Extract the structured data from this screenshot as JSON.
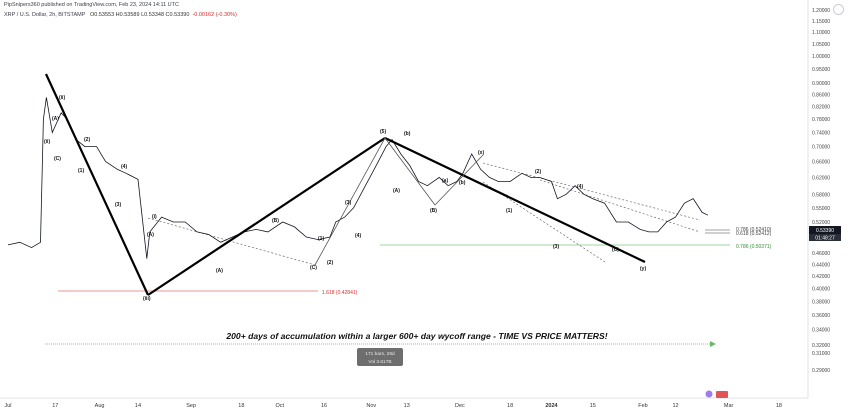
{
  "header": {
    "published": "PipSnipers360 published on TradingView.com, Feb 23, 2024 14:11 UTC",
    "symbol": "XRP / U.S. Dollar, 2h, BITSTAMP",
    "ohlc": "O0.53553 H0.53589 L0.53348 C0.53390",
    "change": "-0.00162 (-0.30%)"
  },
  "annotation": {
    "caption": "200+ days of accumulation within a larger 600+ day wycoff range - TIME VS PRICE MATTERS!",
    "tooltip_line1": "171 bars, 28d",
    "tooltip_line2": "Vol 3.617B"
  },
  "fib_levels": [
    {
      "label": "1.618 (0.42841)",
      "color": "#e57373"
    },
    {
      "label": "0.786 (0.50371)",
      "color": "#81c784"
    },
    {
      "label": "0.786 (0.52410)",
      "color": "#444444"
    },
    {
      "label": "0.618 (0.52412)",
      "color": "#444444"
    }
  ],
  "price_tags": {
    "last": "0.53390",
    "countdown": "01:48:27"
  },
  "wave_labels": [
    "(i)",
    "(ii)",
    "(iii)",
    "(A)",
    "(B)",
    "(C)",
    "(1)",
    "(2)",
    "(3)",
    "(4)",
    "(5)",
    "(a)",
    "(b)",
    "(c)",
    "(d)",
    "(e)",
    "(x)",
    "(y)"
  ],
  "chart_data": {
    "type": "line",
    "x_tick_labels": [
      "Jul",
      "17",
      "Aug",
      "14",
      "Sep",
      "18",
      "Oct",
      "16",
      "Nov",
      "13",
      "Dec",
      "18",
      "2024",
      "15",
      "Feb",
      "12",
      "Mar",
      "18"
    ],
    "y_tick_labels": [
      "1.20000",
      "1.15000",
      "1.10000",
      "1.05000",
      "1.00000",
      "0.95000",
      "0.90000",
      "0.86000",
      "0.82000",
      "0.78000",
      "0.74000",
      "0.70000",
      "0.66000",
      "0.62000",
      "0.58000",
      "0.55000",
      "0.52000",
      "0.49000",
      "0.46000",
      "0.44000",
      "0.42000",
      "0.40000",
      "0.38000",
      "0.36000",
      "0.34000",
      "0.32000",
      "0.31000",
      "0.29000"
    ],
    "ylim": [
      0.29,
      1.2
    ],
    "scale": "log",
    "grid": false,
    "series": [
      {
        "color": "#131722",
        "points": [
          [
            "2023-07-01",
            0.475
          ],
          [
            "2023-07-05",
            0.48
          ],
          [
            "2023-07-09",
            0.47
          ],
          [
            "2023-07-12",
            0.48
          ],
          [
            "2023-07-13",
            0.78
          ],
          [
            "2023-07-14",
            0.85
          ],
          [
            "2023-07-16",
            0.74
          ],
          [
            "2023-07-19",
            0.8
          ],
          [
            "2023-07-21",
            0.78
          ],
          [
            "2023-07-24",
            0.72
          ],
          [
            "2023-07-27",
            0.7
          ],
          [
            "2023-07-31",
            0.7
          ],
          [
            "2023-08-03",
            0.66
          ],
          [
            "2023-08-07",
            0.64
          ],
          [
            "2023-08-10",
            0.63
          ],
          [
            "2023-08-14",
            0.615
          ],
          [
            "2023-08-17",
            0.45
          ],
          [
            "2023-08-18",
            0.5
          ],
          [
            "2023-08-22",
            0.53
          ],
          [
            "2023-08-26",
            0.52
          ],
          [
            "2023-08-30",
            0.52
          ],
          [
            "2023-09-03",
            0.5
          ],
          [
            "2023-09-07",
            0.495
          ],
          [
            "2023-09-11",
            0.48
          ],
          [
            "2023-09-15",
            0.49
          ],
          [
            "2023-09-19",
            0.5
          ],
          [
            "2023-09-23",
            0.505
          ],
          [
            "2023-09-27",
            0.5
          ],
          [
            "2023-10-02",
            0.52
          ],
          [
            "2023-10-06",
            0.51
          ],
          [
            "2023-10-10",
            0.49
          ],
          [
            "2023-10-14",
            0.485
          ],
          [
            "2023-10-18",
            0.49
          ],
          [
            "2023-10-20",
            0.52
          ],
          [
            "2023-10-23",
            0.53
          ],
          [
            "2023-10-26",
            0.55
          ],
          [
            "2023-10-30",
            0.6
          ],
          [
            "2023-11-02",
            0.64
          ],
          [
            "2023-11-06",
            0.7
          ],
          [
            "2023-11-08",
            0.72
          ],
          [
            "2023-11-11",
            0.68
          ],
          [
            "2023-11-14",
            0.65
          ],
          [
            "2023-11-17",
            0.61
          ],
          [
            "2023-11-20",
            0.6
          ],
          [
            "2023-11-24",
            0.62
          ],
          [
            "2023-11-27",
            0.6
          ],
          [
            "2023-11-30",
            0.61
          ],
          [
            "2023-12-02",
            0.63
          ],
          [
            "2023-12-05",
            0.68
          ],
          [
            "2023-12-08",
            0.64
          ],
          [
            "2023-12-11",
            0.62
          ],
          [
            "2023-12-14",
            0.61
          ],
          [
            "2023-12-18",
            0.61
          ],
          [
            "2023-12-22",
            0.63
          ],
          [
            "2023-12-25",
            0.62
          ],
          [
            "2023-12-28",
            0.62
          ],
          [
            "2024-01-01",
            0.61
          ],
          [
            "2024-01-03",
            0.57
          ],
          [
            "2024-01-06",
            0.58
          ],
          [
            "2024-01-09",
            0.6
          ],
          [
            "2024-01-12",
            0.58
          ],
          [
            "2024-01-15",
            0.57
          ],
          [
            "2024-01-19",
            0.56
          ],
          [
            "2024-01-23",
            0.52
          ],
          [
            "2024-01-27",
            0.52
          ],
          [
            "2024-01-31",
            0.505
          ],
          [
            "2024-02-03",
            0.5
          ],
          [
            "2024-02-06",
            0.5
          ],
          [
            "2024-02-09",
            0.52
          ],
          [
            "2024-02-12",
            0.53
          ],
          [
            "2024-02-15",
            0.56
          ],
          [
            "2024-02-18",
            0.57
          ],
          [
            "2024-02-21",
            0.54
          ],
          [
            "2024-02-23",
            0.534
          ]
        ]
      }
    ]
  }
}
